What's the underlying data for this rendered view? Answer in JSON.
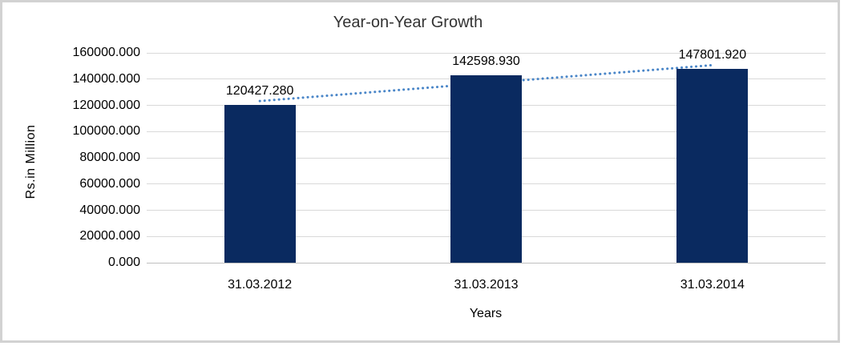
{
  "chart_data": {
    "type": "bar",
    "title": "Year-on-Year Growth",
    "categories": [
      "31.03.2012",
      "31.03.2013",
      "31.03.2014"
    ],
    "values": [
      120427.28,
      142598.93,
      147801.92
    ],
    "data_labels": [
      "120427.280",
      "142598.930",
      "147801.920"
    ],
    "xlabel": "Years",
    "ylabel": "Rs.in Million",
    "ylim": [
      0,
      160000
    ],
    "y_tick_step": 20000,
    "y_ticks": [
      "0.000",
      "20000.000",
      "40000.000",
      "60000.000",
      "80000.000",
      "100000.000",
      "120000.000",
      "140000.000",
      "160000.000"
    ],
    "grid": true,
    "legend": false,
    "trendline": "linear-dotted",
    "colors": {
      "bar": "#0a2a60",
      "trendline": "#4a86c8",
      "gridline": "#d9d9d9",
      "axis_line": "#bfbfbf",
      "title_text": "#333333",
      "tick_text": "#000000",
      "frame_border": "#d2d2d2",
      "background": "#ffffff"
    }
  }
}
